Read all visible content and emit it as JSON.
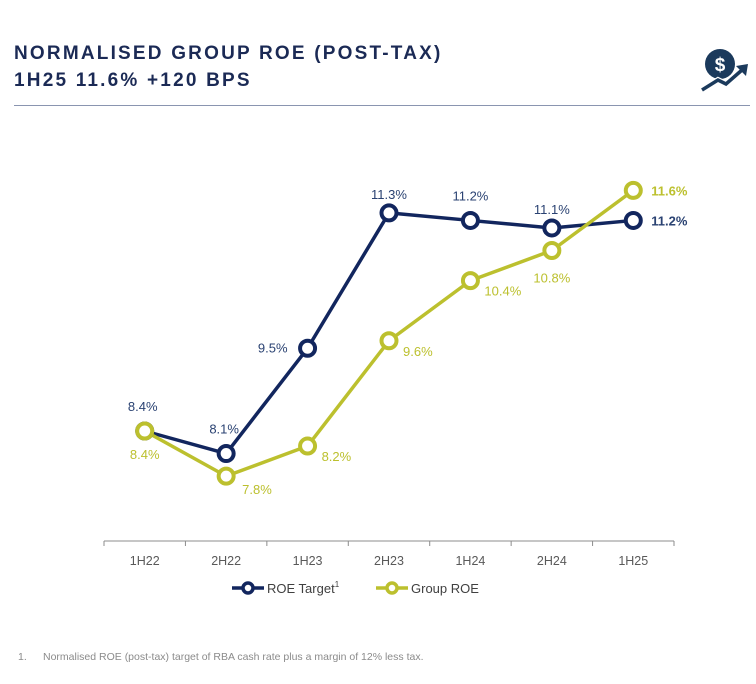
{
  "header": {
    "title_line1": "NORMALISED GROUP ROE (POST-TAX)",
    "title_line2": "1H25 11.6% +120 BPS",
    "icon": "dollar-growth-icon"
  },
  "colors": {
    "navy": "#12265e",
    "lime": "#bcc02e",
    "title": "#1b2a55",
    "axis": "#8c8c8c"
  },
  "chart_data": {
    "type": "line",
    "title": "NORMALISED GROUP ROE (POST-TAX)",
    "xlabel": "",
    "ylabel": "",
    "grid": false,
    "legend_position": "bottom",
    "categories": [
      "1H22",
      "2H22",
      "1H23",
      "2H23",
      "1H24",
      "2H24",
      "1H25"
    ],
    "series": [
      {
        "name": "ROE Target",
        "superscript": "1",
        "color": "#12265e",
        "values": [
          8.4,
          8.1,
          9.5,
          11.3,
          11.2,
          11.1,
          11.2
        ],
        "labels": [
          "8.4%",
          "8.1%",
          "9.5%",
          "11.3%",
          "11.2%",
          "11.1%",
          "11.2%"
        ]
      },
      {
        "name": "Group ROE",
        "color": "#bcc02e",
        "values": [
          8.4,
          7.8,
          8.2,
          9.6,
          10.4,
          10.8,
          11.6
        ],
        "labels": [
          "8.4%",
          "7.8%",
          "8.2%",
          "9.6%",
          "10.4%",
          "10.8%",
          "11.6%"
        ]
      }
    ],
    "ylim": [
      7.0,
      12.0
    ]
  },
  "footnote": {
    "number": "1.",
    "text": "Normalised ROE (post-tax) target of RBA cash rate plus a margin of 12% less tax."
  }
}
